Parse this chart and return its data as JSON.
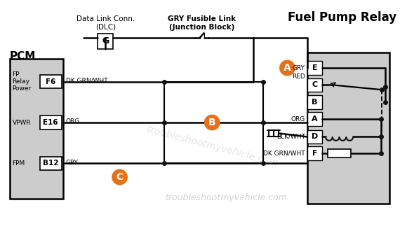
{
  "bg": "#ffffff",
  "box_gray": "#cccccc",
  "relay_gray": "#c8c8c8",
  "orange": "#e8701a",
  "black": "#111111",
  "lw_main": 1.8,
  "title": "Fuel Pump Relay",
  "dlc_label": "Data Link Conn.\n(DLC)",
  "fuse_label": "GRY Fusible Link\n(Junction Block)",
  "watermark": "troubleshootmyvehicle.com",
  "pcm_label": "PCM",
  "pins": [
    {
      "row_label": "FP\nRelay\nPower",
      "pin": "F6",
      "wire": "DK GRN/WHT"
    },
    {
      "row_label": "VPWR",
      "pin": "E16",
      "wire": "ORG"
    },
    {
      "row_label": "FPM",
      "pin": "B12",
      "wire": "GRY"
    }
  ],
  "relay_pins": [
    "E",
    "C",
    "B",
    "A",
    "D",
    "F"
  ],
  "wire_labels_right": [
    "GRY",
    "RED",
    "ORG",
    "BLK/WHT",
    "DK GRN/WHT"
  ]
}
